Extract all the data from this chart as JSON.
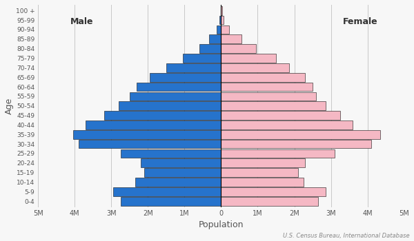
{
  "age_groups": [
    "0-4",
    "5-9",
    "10-14",
    "15-19",
    "20-24",
    "25-29",
    "30-34",
    "35-39",
    "40-44",
    "45-49",
    "50-54",
    "55-59",
    "60-64",
    "65-69",
    "70-74",
    "75-79",
    "80-84",
    "85-89",
    "90-94",
    "95-99",
    "100 +"
  ],
  "male": [
    2.75,
    2.95,
    2.35,
    2.1,
    2.2,
    2.75,
    3.9,
    4.05,
    3.7,
    3.2,
    2.8,
    2.5,
    2.3,
    1.95,
    1.5,
    1.05,
    0.6,
    0.32,
    0.12,
    0.04,
    0.01
  ],
  "female": [
    2.65,
    2.85,
    2.25,
    2.1,
    2.3,
    3.1,
    4.1,
    4.35,
    3.6,
    3.25,
    2.85,
    2.6,
    2.5,
    2.3,
    1.85,
    1.5,
    0.95,
    0.55,
    0.22,
    0.07,
    0.02
  ],
  "male_color": "#2673cc",
  "female_color": "#f5b8c4",
  "edge_color": "#111111",
  "grid_color": "#c8c8c8",
  "bg_color": "#f7f7f7",
  "xlabel": "Population",
  "ylabel": "Age",
  "male_label": "Male",
  "female_label": "Female",
  "source_text": "U.S. Census Bureau, International Database",
  "xlim": 5.0,
  "xtick_positions": [
    -5,
    -4,
    -3,
    -2,
    -1,
    0,
    1,
    2,
    3,
    4,
    5
  ],
  "xtick_labels": [
    "5M",
    "4M",
    "3M",
    "2M",
    "1M",
    "0",
    "1M",
    "2M",
    "3M",
    "4M",
    "5M"
  ]
}
